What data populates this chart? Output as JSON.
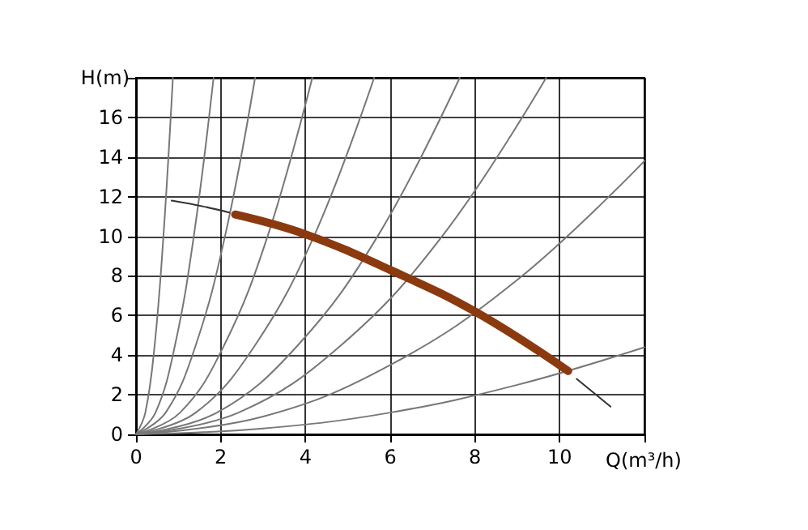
{
  "chart_data": {
    "type": "line",
    "xlabel": "Q(m³/h)",
    "ylabel": "H(m)",
    "xlim": [
      0,
      12
    ],
    "xticks": [
      0,
      2,
      4,
      6,
      8,
      10,
      {
        "value": 12,
        "label": null
      }
    ],
    "ylim": [
      0,
      18
    ],
    "yticks": [
      0,
      2,
      4,
      6,
      8,
      10,
      12,
      14,
      16,
      {
        "value": 18,
        "label": null
      }
    ],
    "grid": true,
    "marker": "none",
    "line_style": "solid",
    "series": [
      {
        "color": "#333333",
        "x": [
          0.84,
          1.6,
          2.2,
          6,
          10.4,
          11.2
        ],
        "values": [
          11.8,
          11.5,
          11.2,
          null,
          2.8,
          1.4
        ]
      },
      {
        "color": "#8b3a0f",
        "x": [
          2.34,
          4,
          6,
          8,
          10.2
        ],
        "values": [
          11.1,
          10.1,
          8.3,
          6.2,
          3.2
        ]
      },
      {
        "color": "#777777",
        "x": [
          0,
          0.22,
          0.44,
          0.65,
          0.87
        ],
        "values": [
          0,
          1.1,
          4.5,
          10.1,
          18
        ]
      },
      {
        "color": "#777777",
        "x": [
          0,
          0.46,
          0.92,
          1.37,
          1.83
        ],
        "values": [
          0,
          1.1,
          4.5,
          10.1,
          18
        ]
      },
      {
        "color": "#777777",
        "x": [
          0,
          0.7,
          1.41,
          2.11,
          2.81
        ],
        "values": [
          0,
          1.1,
          4.5,
          10.1,
          18
        ]
      },
      {
        "color": "#777777",
        "x": [
          0,
          1.04,
          2.08,
          3.12,
          4.16
        ],
        "values": [
          0,
          1.1,
          4.5,
          10.1,
          18
        ]
      },
      {
        "color": "#777777",
        "x": [
          0,
          1.41,
          2.81,
          4.22,
          5.62
        ],
        "values": [
          0,
          1.1,
          4.5,
          10.1,
          18
        ]
      },
      {
        "color": "#777777",
        "x": [
          0,
          1.91,
          3.82,
          5.73,
          7.64
        ],
        "values": [
          0,
          1.1,
          4.5,
          10.1,
          18
        ]
      },
      {
        "color": "#777777",
        "x": [
          0,
          2.42,
          4.84,
          7.26,
          9.68
        ],
        "values": [
          0,
          1.1,
          4.5,
          10.1,
          18
        ]
      },
      {
        "color": "#777777",
        "x": [
          0,
          3,
          6,
          9,
          12
        ],
        "values": [
          0,
          0.9,
          3.5,
          7.8,
          13.8
        ]
      },
      {
        "color": "#777777",
        "x": [
          0,
          3,
          6,
          9,
          12
        ],
        "values": [
          0,
          0.3,
          1.1,
          2.5,
          4.4
        ]
      }
    ]
  }
}
